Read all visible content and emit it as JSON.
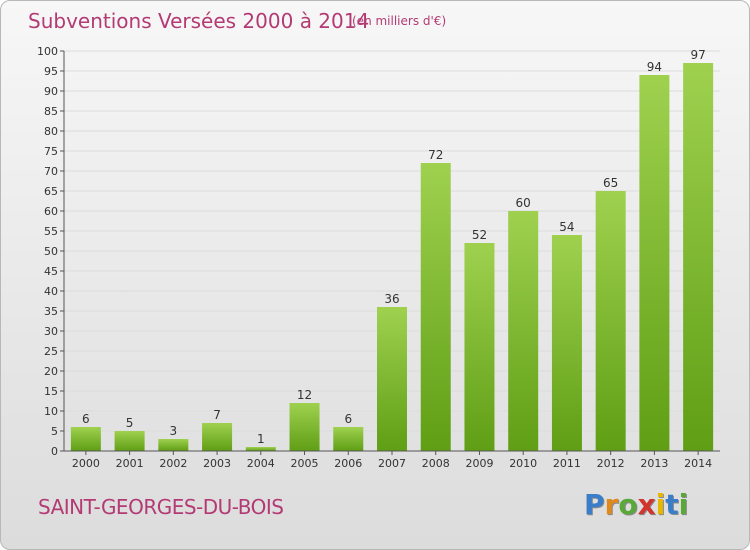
{
  "header": {
    "title": "Subventions Versées 2000 à 2014",
    "unit_note": "(en milliers d'€)"
  },
  "footer": {
    "commune": "SAINT-GEORGES-DU-BOIS",
    "logo": "Proxiti",
    "logo_colors": [
      "#3a7dc9",
      "#e08a1e",
      "#5aa83a",
      "#d0342c",
      "#e6b800",
      "#3a7dc9",
      "#5aa83a"
    ]
  },
  "colors": {
    "title": "#b33a74",
    "bar_light": "#9fd14f",
    "bar_dark": "#5f9e15",
    "axis": "#555555",
    "grid": "#dcdcdc"
  },
  "chart_data": {
    "type": "bar",
    "title": "Subventions Versées 2000 à 2014",
    "subtitle": "(en milliers d'€)",
    "xlabel": "",
    "ylabel": "",
    "ylim": [
      0,
      100
    ],
    "yticks": [
      0,
      5,
      10,
      15,
      20,
      25,
      30,
      35,
      40,
      45,
      50,
      55,
      60,
      65,
      70,
      75,
      80,
      85,
      90,
      95,
      100
    ],
    "grid": true,
    "legend": "none",
    "categories": [
      "2000",
      "2001",
      "2002",
      "2003",
      "2004",
      "2005",
      "2006",
      "2007",
      "2008",
      "2009",
      "2010",
      "2011",
      "2012",
      "2013",
      "2014"
    ],
    "values": [
      6,
      5,
      3,
      7,
      1,
      12,
      6,
      36,
      72,
      52,
      60,
      54,
      65,
      94,
      97
    ]
  }
}
